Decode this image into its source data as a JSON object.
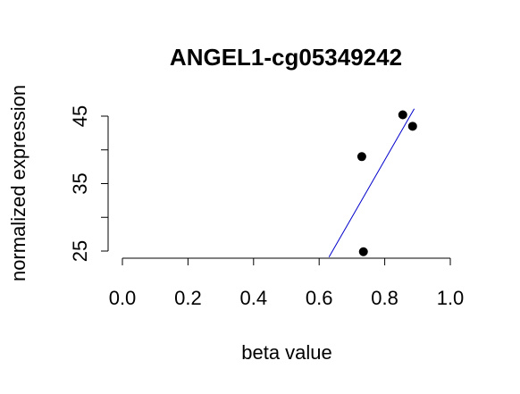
{
  "chart_data": {
    "type": "scatter",
    "title": "ANGEL1-cg05349242",
    "xlabel": "beta value",
    "ylabel": "normalized expression",
    "xlim": [
      0.0,
      1.0
    ],
    "ylim": [
      25,
      45
    ],
    "x_ticks": [
      "0.0",
      "0.2",
      "0.4",
      "0.6",
      "0.8",
      "1.0"
    ],
    "y_ticks": [
      "25",
      "35",
      "45"
    ],
    "points": [
      {
        "x": 0.73,
        "y": 39.0
      },
      {
        "x": 0.855,
        "y": 45.2
      },
      {
        "x": 0.885,
        "y": 43.5
      },
      {
        "x": 0.735,
        "y": 24.9
      }
    ],
    "fit_line": {
      "x": [
        0.63,
        0.89
      ],
      "y": [
        24.1,
        46.1
      ]
    },
    "point_color": "#000000",
    "line_color": "#0000cc",
    "grid": false,
    "legend": "none"
  }
}
